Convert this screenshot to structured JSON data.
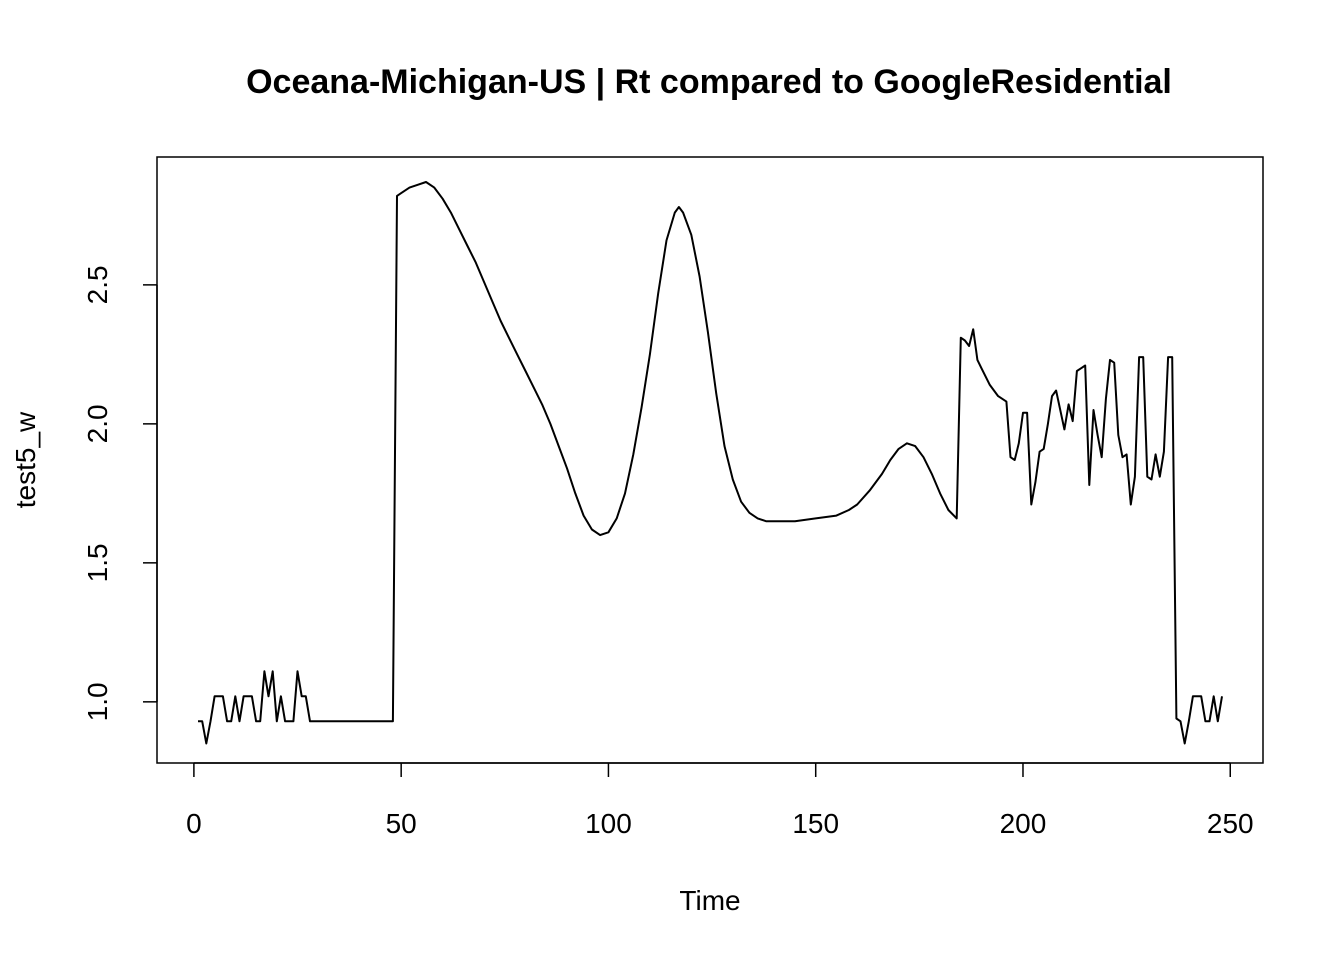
{
  "chart_data": {
    "type": "line",
    "title": "Oceana-Michigan-US | Rt compared to GoogleResidential",
    "xlabel": "Time",
    "ylabel": "test5_w",
    "xlim": [
      -8.9,
      257.9
    ],
    "ylim": [
      0.78,
      2.96
    ],
    "xticks": [
      0,
      50,
      100,
      150,
      200,
      250
    ],
    "yticks": [
      1.0,
      1.5,
      2.0,
      2.5
    ],
    "xtick_labels": [
      "0",
      "50",
      "100",
      "150",
      "200",
      "250"
    ],
    "ytick_labels": [
      "1.0",
      "1.5",
      "2.0",
      "2.5"
    ],
    "grid": false,
    "line_color": "#000000",
    "series": [
      {
        "points": [
          [
            1,
            0.93
          ],
          [
            2,
            0.93
          ],
          [
            3,
            0.85
          ],
          [
            4,
            0.93
          ],
          [
            5,
            1.02
          ],
          [
            6,
            1.02
          ],
          [
            7,
            1.02
          ],
          [
            8,
            0.93
          ],
          [
            9,
            0.93
          ],
          [
            10,
            1.02
          ],
          [
            11,
            0.93
          ],
          [
            12,
            1.02
          ],
          [
            13,
            1.02
          ],
          [
            14,
            1.02
          ],
          [
            15,
            0.93
          ],
          [
            16,
            0.93
          ],
          [
            17,
            1.11
          ],
          [
            18,
            1.02
          ],
          [
            19,
            1.11
          ],
          [
            20,
            0.93
          ],
          [
            21,
            1.02
          ],
          [
            22,
            0.93
          ],
          [
            23,
            0.93
          ],
          [
            24,
            0.93
          ],
          [
            25,
            1.11
          ],
          [
            26,
            1.02
          ],
          [
            27,
            1.02
          ],
          [
            28,
            0.93
          ],
          [
            30,
            0.93
          ],
          [
            35,
            0.93
          ],
          [
            40,
            0.93
          ],
          [
            45,
            0.93
          ],
          [
            48,
            0.93
          ],
          [
            49,
            2.82
          ],
          [
            50,
            2.83
          ],
          [
            52,
            2.85
          ],
          [
            54,
            2.86
          ],
          [
            56,
            2.87
          ],
          [
            58,
            2.85
          ],
          [
            60,
            2.81
          ],
          [
            62,
            2.76
          ],
          [
            64,
            2.7
          ],
          [
            66,
            2.64
          ],
          [
            68,
            2.58
          ],
          [
            70,
            2.51
          ],
          [
            72,
            2.44
          ],
          [
            74,
            2.37
          ],
          [
            76,
            2.31
          ],
          [
            78,
            2.25
          ],
          [
            80,
            2.19
          ],
          [
            82,
            2.13
          ],
          [
            84,
            2.07
          ],
          [
            86,
            2.0
          ],
          [
            88,
            1.92
          ],
          [
            90,
            1.84
          ],
          [
            92,
            1.75
          ],
          [
            94,
            1.67
          ],
          [
            96,
            1.62
          ],
          [
            98,
            1.6
          ],
          [
            100,
            1.61
          ],
          [
            102,
            1.66
          ],
          [
            104,
            1.75
          ],
          [
            106,
            1.89
          ],
          [
            108,
            2.06
          ],
          [
            110,
            2.25
          ],
          [
            112,
            2.47
          ],
          [
            114,
            2.66
          ],
          [
            116,
            2.76
          ],
          [
            117,
            2.78
          ],
          [
            118,
            2.76
          ],
          [
            120,
            2.68
          ],
          [
            122,
            2.53
          ],
          [
            124,
            2.33
          ],
          [
            126,
            2.11
          ],
          [
            128,
            1.92
          ],
          [
            130,
            1.8
          ],
          [
            132,
            1.72
          ],
          [
            134,
            1.68
          ],
          [
            136,
            1.66
          ],
          [
            138,
            1.65
          ],
          [
            140,
            1.65
          ],
          [
            145,
            1.65
          ],
          [
            150,
            1.66
          ],
          [
            155,
            1.67
          ],
          [
            158,
            1.69
          ],
          [
            160,
            1.71
          ],
          [
            163,
            1.76
          ],
          [
            166,
            1.82
          ],
          [
            168,
            1.87
          ],
          [
            170,
            1.91
          ],
          [
            172,
            1.93
          ],
          [
            174,
            1.92
          ],
          [
            176,
            1.88
          ],
          [
            178,
            1.82
          ],
          [
            180,
            1.75
          ],
          [
            182,
            1.69
          ],
          [
            184,
            1.66
          ],
          [
            185,
            2.31
          ],
          [
            186,
            2.3
          ],
          [
            187,
            2.28
          ],
          [
            188,
            2.34
          ],
          [
            189,
            2.23
          ],
          [
            190,
            2.2
          ],
          [
            192,
            2.14
          ],
          [
            194,
            2.1
          ],
          [
            196,
            2.08
          ],
          [
            197,
            1.88
          ],
          [
            198,
            1.87
          ],
          [
            199,
            1.93
          ],
          [
            200,
            2.04
          ],
          [
            201,
            2.04
          ],
          [
            202,
            1.71
          ],
          [
            203,
            1.79
          ],
          [
            204,
            1.9
          ],
          [
            205,
            1.91
          ],
          [
            206,
            2.0
          ],
          [
            207,
            2.1
          ],
          [
            208,
            2.12
          ],
          [
            210,
            1.98
          ],
          [
            211,
            2.07
          ],
          [
            212,
            2.01
          ],
          [
            213,
            2.19
          ],
          [
            214,
            2.2
          ],
          [
            215,
            2.21
          ],
          [
            216,
            1.78
          ],
          [
            217,
            2.05
          ],
          [
            218,
            1.96
          ],
          [
            219,
            1.88
          ],
          [
            220,
            2.09
          ],
          [
            221,
            2.23
          ],
          [
            222,
            2.22
          ],
          [
            223,
            1.96
          ],
          [
            224,
            1.88
          ],
          [
            225,
            1.89
          ],
          [
            226,
            1.71
          ],
          [
            227,
            1.81
          ],
          [
            228,
            2.24
          ],
          [
            229,
            2.24
          ],
          [
            230,
            1.81
          ],
          [
            231,
            1.8
          ],
          [
            232,
            1.89
          ],
          [
            233,
            1.81
          ],
          [
            234,
            1.9
          ],
          [
            235,
            2.24
          ],
          [
            236,
            2.24
          ],
          [
            237,
            0.94
          ],
          [
            238,
            0.93
          ],
          [
            239,
            0.85
          ],
          [
            240,
            0.93
          ],
          [
            241,
            1.02
          ],
          [
            242,
            1.02
          ],
          [
            243,
            1.02
          ],
          [
            244,
            0.93
          ],
          [
            245,
            0.93
          ],
          [
            246,
            1.02
          ],
          [
            247,
            0.93
          ],
          [
            248,
            1.02
          ]
        ]
      }
    ]
  }
}
